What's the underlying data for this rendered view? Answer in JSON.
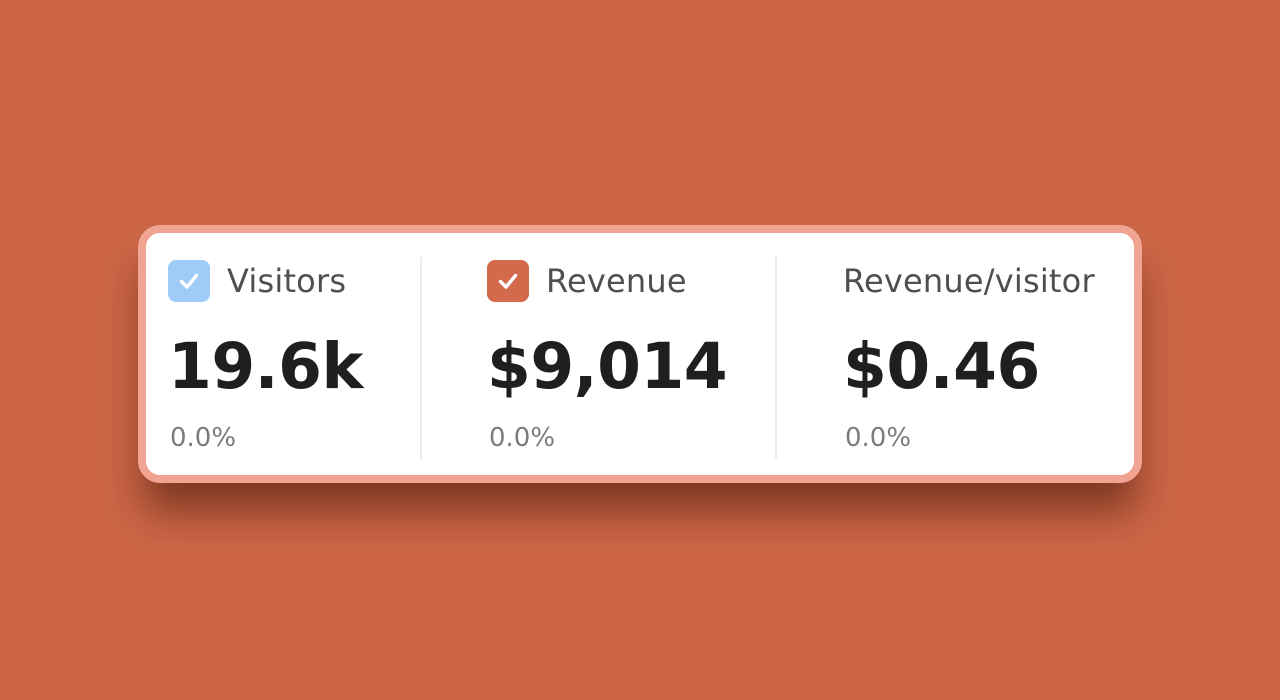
{
  "metrics": [
    {
      "label": "Visitors",
      "value": "19.6k",
      "change": "0.0%",
      "checked": true,
      "checkbox_color": "#9ecbf8",
      "checkbox_icon": "checkmark-icon"
    },
    {
      "label": "Revenue",
      "value": "$9,014",
      "change": "0.0%",
      "checked": true,
      "checkbox_color": "#d46a4c",
      "checkbox_icon": "checkmark-icon"
    },
    {
      "label": "Revenue/visitor",
      "value": "$0.46",
      "change": "0.0%",
      "checked": false
    }
  ],
  "colors": {
    "background": "#cc6646",
    "card_border": "#f2a493",
    "card_background": "#ffffff",
    "value_text": "#1f1f1f",
    "label_text": "#4f4f4f",
    "change_text": "#7c7c7c"
  }
}
